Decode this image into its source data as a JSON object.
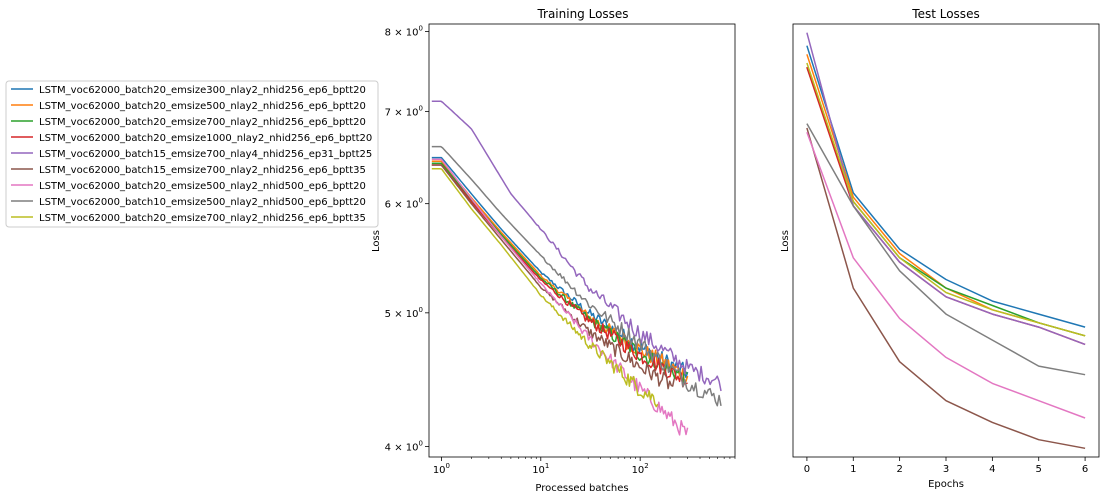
{
  "chart_data": [
    {
      "type": "line",
      "title": "Training Losses",
      "xlabel": "Processed batches",
      "ylabel": "Loss",
      "xscale": "log",
      "yscale": "log",
      "xlim": [
        0.75,
        900
      ],
      "ylim": [
        3.93,
        8.1
      ],
      "x_ticks": [
        {
          "value": 1,
          "base": "10",
          "exp": "0"
        },
        {
          "value": 10,
          "base": "10",
          "exp": "1"
        },
        {
          "value": 100,
          "base": "10",
          "exp": "2"
        }
      ],
      "y_ticks": [
        {
          "value": 4,
          "mant": "4",
          "base": "10",
          "exp": "0"
        },
        {
          "value": 5,
          "mant": "5",
          "base": "10",
          "exp": "0"
        },
        {
          "value": 6,
          "mant": "6",
          "base": "10",
          "exp": "0"
        },
        {
          "value": 7,
          "mant": "7",
          "base": "10",
          "exp": "0"
        },
        {
          "value": 8,
          "mant": "8",
          "base": "10",
          "exp": "0"
        }
      ],
      "legend": "left, outside",
      "series": [
        {
          "name": "LSTM_voc62000_batch20_emsize300_nlay2_nhid256_ep6_bptt20",
          "color": "#1f77b4",
          "x": [
            0.8,
            1,
            2,
            4,
            10,
            30,
            100,
            300
          ],
          "y": [
            6.48,
            6.48,
            6.1,
            5.75,
            5.35,
            5.0,
            4.72,
            4.52
          ]
        },
        {
          "name": "LSTM_voc62000_batch20_emsize500_nlay2_nhid256_ep6_bptt20",
          "color": "#ff7f0e",
          "x": [
            0.8,
            1,
            2,
            4,
            10,
            30,
            100,
            300
          ],
          "y": [
            6.44,
            6.44,
            6.06,
            5.72,
            5.32,
            4.97,
            4.7,
            4.5
          ]
        },
        {
          "name": "LSTM_voc62000_batch20_emsize700_nlay2_nhid256_ep6_bptt20",
          "color": "#2ca02c",
          "x": [
            0.8,
            1,
            2,
            4,
            10,
            30,
            100,
            300
          ],
          "y": [
            6.42,
            6.42,
            6.04,
            5.7,
            5.3,
            4.95,
            4.67,
            4.48
          ]
        },
        {
          "name": "LSTM_voc62000_batch20_emsize1000_nlay2_nhid256_ep6_bptt20",
          "color": "#d62728",
          "x": [
            0.8,
            1,
            2,
            4,
            10,
            30,
            100,
            300
          ],
          "y": [
            6.4,
            6.4,
            6.02,
            5.68,
            5.28,
            4.94,
            4.66,
            4.46
          ]
        },
        {
          "name": "LSTM_voc62000_batch15_emsize700_nlay4_nhid256_ep31_bptt25",
          "color": "#9467bd",
          "x": [
            0.8,
            1,
            2,
            5,
            10,
            30,
            100,
            300,
            650
          ],
          "y": [
            7.12,
            7.12,
            6.8,
            6.1,
            5.75,
            5.22,
            4.83,
            4.56,
            4.45
          ]
        },
        {
          "name": "LSTM_voc62000_batch15_emsize700_nlay2_nhid256_ep6_bptt35",
          "color": "#8c564b",
          "x": [
            0.8,
            1,
            2,
            4,
            10,
            30,
            100,
            220
          ],
          "y": [
            6.4,
            6.4,
            6.0,
            5.65,
            5.22,
            4.85,
            4.57,
            4.42
          ]
        },
        {
          "name": "LSTM_voc62000_batch20_emsize500_nlay2_nhid500_ep6_bptt20",
          "color": "#e377c2",
          "x": [
            0.8,
            1,
            2,
            4,
            10,
            30,
            100,
            300
          ],
          "y": [
            6.46,
            6.46,
            6.05,
            5.68,
            5.25,
            4.8,
            4.4,
            4.08
          ]
        },
        {
          "name": "LSTM_voc62000_batch10_emsize500_nlay2_nhid500_ep6_bptt20",
          "color": "#7f7f7f",
          "x": [
            0.8,
            1,
            2,
            4,
            10,
            30,
            100,
            300,
            650
          ],
          "y": [
            6.6,
            6.6,
            6.25,
            5.9,
            5.5,
            5.08,
            4.75,
            4.45,
            4.32
          ]
        },
        {
          "name": "LSTM_voc62000_batch20_emsize700_nlay2_nhid256_ep6_bptt35",
          "color": "#bcbd22",
          "x": [
            0.8,
            1,
            2,
            4,
            10,
            30,
            100,
            150
          ],
          "y": [
            6.36,
            6.36,
            5.95,
            5.6,
            5.15,
            4.75,
            4.4,
            4.32
          ]
        }
      ]
    },
    {
      "type": "line",
      "title": "Test Losses",
      "xlabel": "Epochs",
      "ylabel": "Loss",
      "x": [
        0,
        1,
        2,
        3,
        4,
        5,
        6
      ],
      "xlim": [
        -0.3,
        6.3
      ],
      "ylim": [
        0,
        1
      ],
      "x_ticks": [
        "0",
        "1",
        "2",
        "3",
        "4",
        "5",
        "6"
      ],
      "series": [
        {
          "color": "#1f77b4",
          "values": [
            0.95,
            0.61,
            0.48,
            0.41,
            0.36,
            0.33,
            0.3
          ]
        },
        {
          "color": "#ff7f0e",
          "values": [
            0.93,
            0.6,
            0.47,
            0.39,
            0.34,
            0.31,
            0.28
          ]
        },
        {
          "color": "#2ca02c",
          "values": [
            0.9,
            0.59,
            0.46,
            0.39,
            0.35,
            0.31,
            0.28
          ]
        },
        {
          "color": "#d62728",
          "values": [
            0.9,
            0.58,
            0.45,
            0.37,
            0.33,
            0.3,
            0.26
          ]
        },
        {
          "color": "#9467bd",
          "values": [
            0.98,
            0.58,
            0.45,
            0.37,
            0.33,
            0.3,
            0.26
          ]
        },
        {
          "color": "#8c564b",
          "values": [
            0.76,
            0.39,
            0.22,
            0.13,
            0.08,
            0.04,
            0.02
          ]
        },
        {
          "color": "#e377c2",
          "values": [
            0.75,
            0.46,
            0.32,
            0.23,
            0.17,
            0.13,
            0.09
          ]
        },
        {
          "color": "#7f7f7f",
          "values": [
            0.77,
            0.58,
            0.43,
            0.33,
            0.27,
            0.21,
            0.19
          ]
        },
        {
          "color": "#bcbd22",
          "values": [
            0.91,
            0.59,
            0.46,
            0.38,
            0.34,
            0.31,
            0.28
          ]
        }
      ]
    }
  ]
}
